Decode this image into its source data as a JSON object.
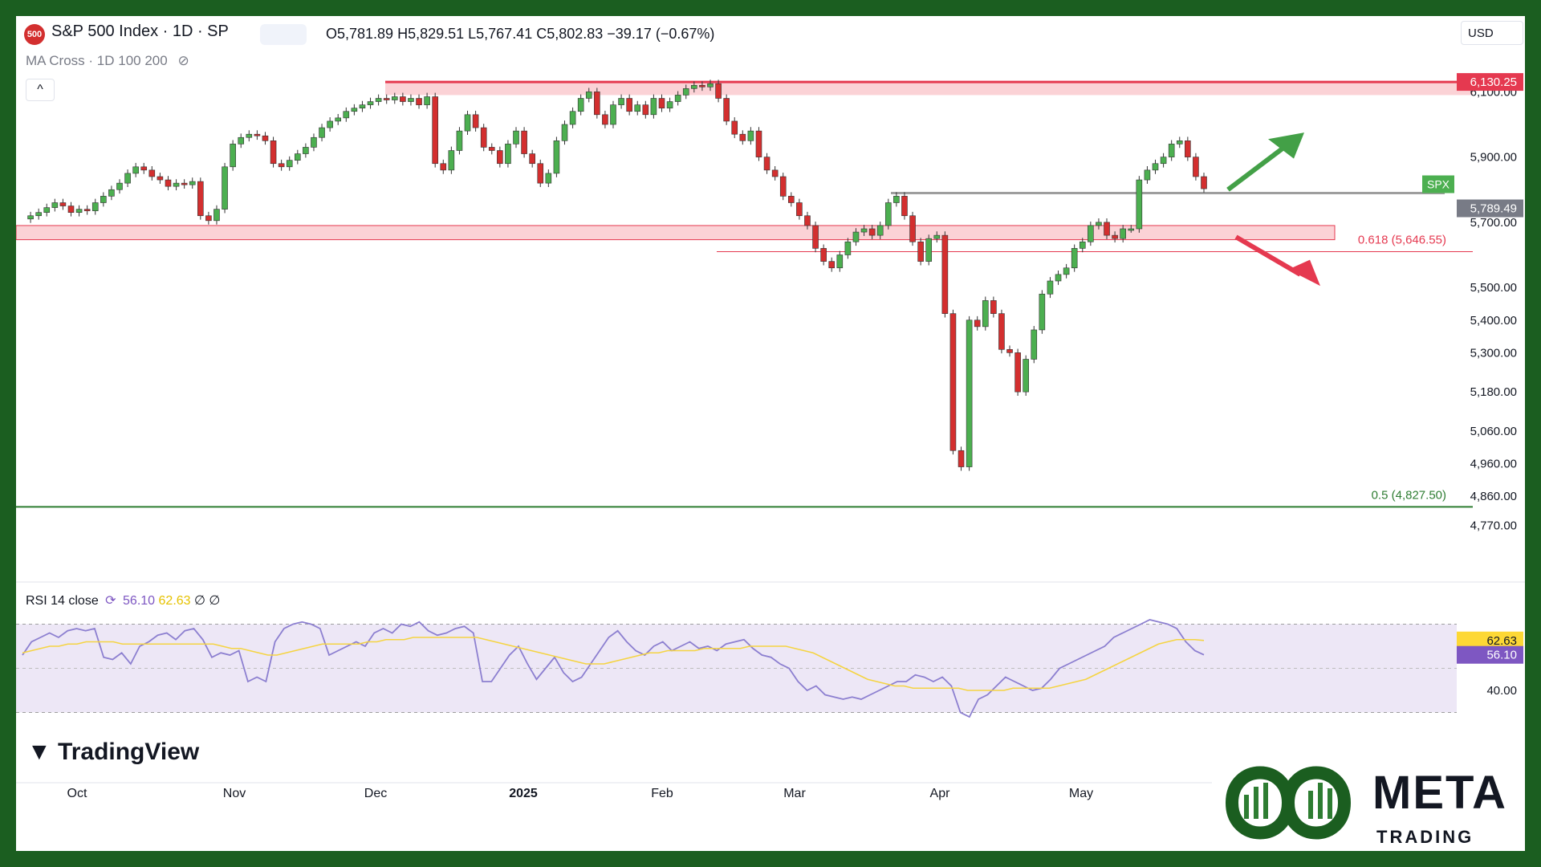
{
  "header": {
    "symbol_badge": "500",
    "title": "S&P 500 Index · 1D · SP",
    "ohlc": "O5,781.89  H5,829.51  L5,767.41  C5,802.83  −39.17 (−0.67%)",
    "indicator": "MA Cross · 1D 100 200",
    "currency": "USD",
    "collapse_icon": "chevron-up-icon"
  },
  "price_axis": {
    "ticks": [
      "6,100.00",
      "5,900.00",
      "5,700.00",
      "5,500.00",
      "5,400.00",
      "5,300.00",
      "5,180.00",
      "5,060.00",
      "4,960.00",
      "4,860.00",
      "4,770.00"
    ],
    "tags": {
      "resistance": "6,130.25",
      "last": "5,789.49",
      "symbol": "SPX"
    }
  },
  "levels": {
    "fib_618": "0.618 (5,646.55)",
    "fib_05": "0.5 (4,827.50)"
  },
  "rsi": {
    "label": "RSI 14 close",
    "value": "56.10",
    "ma": "62.63",
    "extra": "∅ ∅",
    "tick": "40.00",
    "tag_value": "56.10",
    "tag_ma": "62.63"
  },
  "time_axis": [
    "Oct",
    "Nov",
    "Dec",
    "2025",
    "Feb",
    "Mar",
    "Apr",
    "May"
  ],
  "branding": {
    "tradingview": "TradingView",
    "meta_title": "META",
    "meta_sub": "TRADING CLUB"
  },
  "colors": {
    "up": "#4caf50",
    "down": "#d32f2f",
    "resistance": "#e53950",
    "zone_fill": "#fbd2d6",
    "rsi_line": "#8c7fd0",
    "rsi_ma": "#f5d442",
    "support_line": "#2e7d32",
    "arrow_up": "#43a047",
    "arrow_down": "#e53950",
    "brand_green": "#1b5e20"
  },
  "chart_data": {
    "type": "candlestick",
    "title": "S&P 500 Index · 1D · SP",
    "ylim": [
      4720,
      6160
    ],
    "x_months": [
      "Oct",
      "Nov",
      "Dec",
      "2025",
      "Feb",
      "Mar",
      "Apr",
      "May"
    ],
    "resistance_zone": [
      6090,
      6130.25
    ],
    "support_zone": [
      5646.55,
      5690
    ],
    "horizontal_levels": [
      5789.49,
      4827.5
    ],
    "close_series": [
      5710,
      5720,
      5730,
      5745,
      5760,
      5750,
      5730,
      5740,
      5735,
      5760,
      5780,
      5800,
      5820,
      5850,
      5870,
      5860,
      5840,
      5830,
      5810,
      5820,
      5815,
      5825,
      5720,
      5705,
      5740,
      5870,
      5940,
      5960,
      5970,
      5965,
      5950,
      5880,
      5870,
      5890,
      5910,
      5930,
      5960,
      5990,
      6010,
      6020,
      6040,
      6050,
      6060,
      6070,
      6080,
      6075,
      6085,
      6070,
      6080,
      6060,
      6085,
      5880,
      5860,
      5920,
      5980,
      6030,
      5990,
      5930,
      5920,
      5880,
      5940,
      5980,
      5910,
      5880,
      5820,
      5850,
      5950,
      6000,
      6040,
      6080,
      6100,
      6030,
      6000,
      6060,
      6080,
      6040,
      6060,
      6030,
      6080,
      6050,
      6070,
      6090,
      6110,
      6120,
      6115,
      6125,
      6080,
      6010,
      5970,
      5950,
      5980,
      5900,
      5860,
      5840,
      5780,
      5760,
      5720,
      5690,
      5620,
      5580,
      5560,
      5600,
      5640,
      5670,
      5680,
      5660,
      5690,
      5760,
      5780,
      5720,
      5640,
      5580,
      5650,
      5660,
      5420,
      5000,
      4950,
      5400,
      5380,
      5460,
      5420,
      5310,
      5300,
      5180,
      5280,
      5370,
      5480,
      5520,
      5540,
      5560,
      5620,
      5640,
      5690,
      5700,
      5660,
      5650,
      5680,
      5680,
      5830,
      5860,
      5880,
      5900,
      5940,
      5950,
      5900,
      5840,
      5802.83
    ],
    "rsi_series": [
      56,
      62,
      64,
      66,
      64,
      67,
      68,
      67,
      68,
      55,
      54,
      57,
      52,
      60,
      62,
      65,
      66,
      63,
      67,
      68,
      63,
      55,
      57,
      56,
      58,
      44,
      46,
      44,
      62,
      68,
      70,
      71,
      70,
      68,
      56,
      58,
      60,
      62,
      60,
      66,
      68,
      66,
      70,
      69,
      71,
      67,
      65,
      66,
      68,
      69,
      66,
      44,
      44,
      50,
      56,
      60,
      52,
      45,
      50,
      55,
      48,
      44,
      46,
      52,
      58,
      64,
      67,
      62,
      58,
      56,
      60,
      62,
      58,
      60,
      62,
      59,
      60,
      58,
      61,
      62,
      63,
      59,
      56,
      55,
      52,
      50,
      44,
      40,
      42,
      38,
      37,
      36,
      37,
      36,
      38,
      40,
      42,
      44,
      44,
      47,
      46,
      44,
      46,
      42,
      30,
      28,
      36,
      38,
      42,
      46,
      44,
      42,
      40,
      41,
      45,
      50,
      52,
      54,
      56,
      58,
      60,
      64,
      66,
      68,
      70,
      72,
      71,
      70,
      68,
      62,
      58,
      56.1
    ],
    "rsi_ma_series": [
      57,
      58,
      59,
      60,
      60,
      61,
      61,
      62,
      62,
      62,
      62,
      61,
      61,
      61,
      61,
      61,
      61,
      61,
      61,
      61,
      61,
      61,
      60,
      59,
      59,
      58,
      57,
      56,
      56,
      57,
      58,
      59,
      60,
      61,
      61,
      61,
      61,
      61,
      62,
      62,
      63,
      63,
      63,
      64,
      64,
      64,
      64,
      64,
      64,
      64,
      64,
      63,
      62,
      61,
      60,
      59,
      58,
      57,
      56,
      55,
      54,
      53,
      52,
      52,
      52,
      53,
      54,
      55,
      56,
      57,
      57,
      58,
      58,
      58,
      58,
      59,
      59,
      59,
      59,
      59,
      60,
      60,
      60,
      60,
      60,
      59,
      58,
      57,
      55,
      53,
      51,
      49,
      47,
      45,
      44,
      43,
      42,
      42,
      41,
      41,
      41,
      41,
      41,
      41,
      40,
      40,
      40,
      40,
      40,
      41,
      41,
      41,
      41,
      41,
      42,
      43,
      44,
      45,
      47,
      49,
      51,
      53,
      55,
      57,
      59,
      61,
      62,
      63,
      63,
      63,
      62.63
    ],
    "rsi_ylim": [
      20,
      80
    ]
  }
}
